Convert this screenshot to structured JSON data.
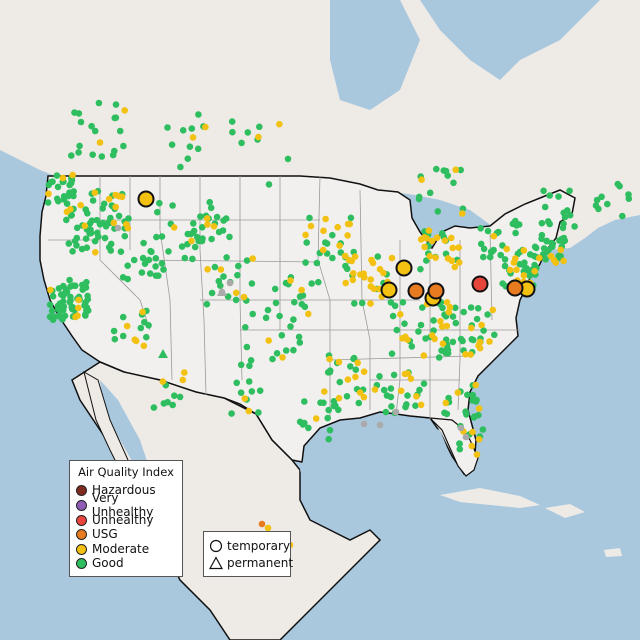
{
  "colors": {
    "ocean": "#a9c8de",
    "land_foreign": "#eeeae6",
    "land_us": "#f2f0ef",
    "state_border": "#9a9a9a",
    "country_border": "#111111"
  },
  "legend": {
    "title": "Air Quality Index",
    "items": [
      {
        "label": "Hazardous",
        "color": "#7e2a1f"
      },
      {
        "label": "Very Unhealthy",
        "color": "#8f5bb5"
      },
      {
        "label": "Unhealthy",
        "color": "#e8453c"
      },
      {
        "label": "USG",
        "color": "#e87a20"
      },
      {
        "label": "Moderate",
        "color": "#f2c111"
      },
      {
        "label": "Good",
        "color": "#2fbe5f"
      }
    ]
  },
  "type_legend": {
    "items": [
      {
        "label": "temporary",
        "shape": "circle-icon"
      },
      {
        "label": "permanent",
        "shape": "triangle-icon"
      }
    ]
  },
  "markers": {
    "unhealthy": [
      [
        480,
        284
      ]
    ],
    "usg": [
      [
        416,
        291
      ],
      [
        436,
        291
      ],
      [
        515,
        288
      ]
    ],
    "moderate_large": [
      [
        146,
        199
      ],
      [
        404,
        268
      ],
      [
        389,
        290
      ],
      [
        433,
        298
      ],
      [
        527,
        289
      ]
    ],
    "missing_gray": [
      [
        118,
        228
      ],
      [
        222,
        292
      ],
      [
        230,
        283
      ],
      [
        364,
        424
      ],
      [
        380,
        425
      ],
      [
        396,
        412
      ],
      [
        461,
        428
      ],
      [
        466,
        437
      ]
    ],
    "triangles_gray": [
      [
        222,
        292
      ]
    ],
    "triangles_green": [
      [
        163,
        354
      ]
    ]
  }
}
